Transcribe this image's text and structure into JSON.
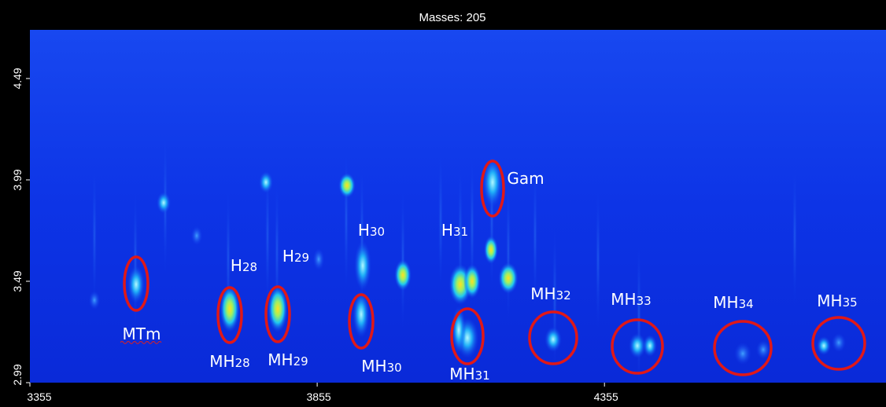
{
  "chart_data": {
    "type": "heatmap",
    "title": "Masses:  205",
    "xlim": [
      3355,
      4845
    ],
    "xticks": [
      3355,
      3855,
      4355
    ],
    "ylim": [
      2.99,
      4.73
    ],
    "yticks": [
      2.99,
      3.49,
      3.99,
      4.49
    ],
    "annotations": [
      {
        "base": "MTm"
      },
      {
        "base": "H",
        "sub": "28"
      },
      {
        "base": "MH",
        "sub": "28"
      },
      {
        "base": "H",
        "sub": "29"
      },
      {
        "base": "MH",
        "sub": "29"
      },
      {
        "base": "H",
        "sub": "30"
      },
      {
        "base": "MH",
        "sub": "30"
      },
      {
        "base": "H",
        "sub": "31"
      },
      {
        "base": "MH",
        "sub": "31"
      },
      {
        "base": "Gam"
      },
      {
        "base": "MH",
        "sub": "32"
      },
      {
        "base": "MH",
        "sub": "33"
      },
      {
        "base": "MH",
        "sub": "34"
      },
      {
        "base": "MH",
        "sub": "35"
      }
    ]
  }
}
